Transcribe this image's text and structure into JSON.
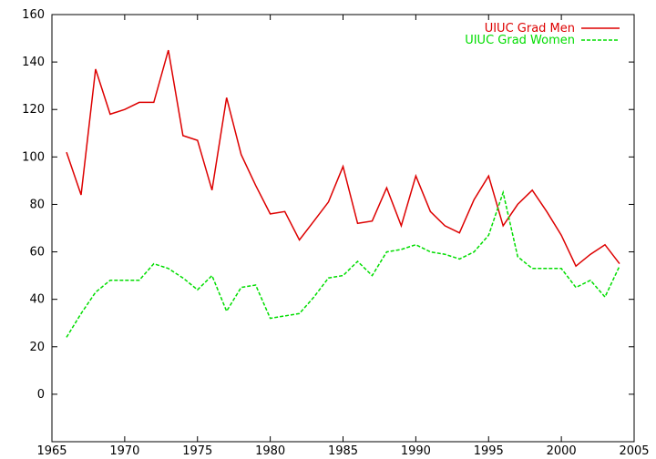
{
  "chart_data": {
    "type": "line",
    "title": "",
    "xlabel": "",
    "ylabel": "",
    "xlim": [
      1965,
      2005
    ],
    "ylim": [
      -20,
      160
    ],
    "xticks": [
      1965,
      1970,
      1975,
      1980,
      1985,
      1990,
      1995,
      2000,
      2005
    ],
    "yticks": [
      0,
      20,
      40,
      60,
      80,
      100,
      120,
      140,
      160
    ],
    "grid": false,
    "legend_position": "top-right",
    "series": [
      {
        "name": "UIUC Grad Men",
        "color": "#dd0000",
        "style": "solid",
        "x": [
          1966,
          1967,
          1968,
          1969,
          1970,
          1971,
          1972,
          1973,
          1974,
          1975,
          1976,
          1977,
          1978,
          1979,
          1980,
          1981,
          1982,
          1983,
          1984,
          1985,
          1986,
          1987,
          1988,
          1989,
          1990,
          1991,
          1992,
          1993,
          1994,
          1995,
          1996,
          1997,
          1998,
          1999,
          2000,
          2001,
          2002,
          2003,
          2004
        ],
        "values": [
          102,
          84,
          137,
          118,
          120,
          123,
          123,
          145,
          109,
          107,
          86,
          125,
          101,
          88,
          76,
          77,
          65,
          73,
          81,
          96,
          72,
          73,
          87,
          71,
          92,
          77,
          71,
          68,
          82,
          92,
          71,
          80,
          86,
          77,
          67,
          54,
          59,
          63,
          55
        ]
      },
      {
        "name": "UIUC Grad Women",
        "color": "#00dd00",
        "style": "dashed",
        "x": [
          1966,
          1967,
          1968,
          1969,
          1970,
          1971,
          1972,
          1973,
          1974,
          1975,
          1976,
          1977,
          1978,
          1979,
          1980,
          1981,
          1982,
          1983,
          1984,
          1985,
          1986,
          1987,
          1988,
          1989,
          1990,
          1991,
          1992,
          1993,
          1994,
          1995,
          1996,
          1997,
          1998,
          1999,
          2000,
          2001,
          2002,
          2003,
          2004
        ],
        "values": [
          24,
          34,
          43,
          48,
          48,
          48,
          55,
          53,
          49,
          44,
          50,
          35,
          45,
          46,
          32,
          33,
          34,
          41,
          49,
          50,
          56,
          50,
          60,
          61,
          63,
          60,
          59,
          57,
          60,
          67,
          85,
          58,
          53,
          53,
          53,
          45,
          48,
          41,
          54
        ]
      }
    ]
  }
}
